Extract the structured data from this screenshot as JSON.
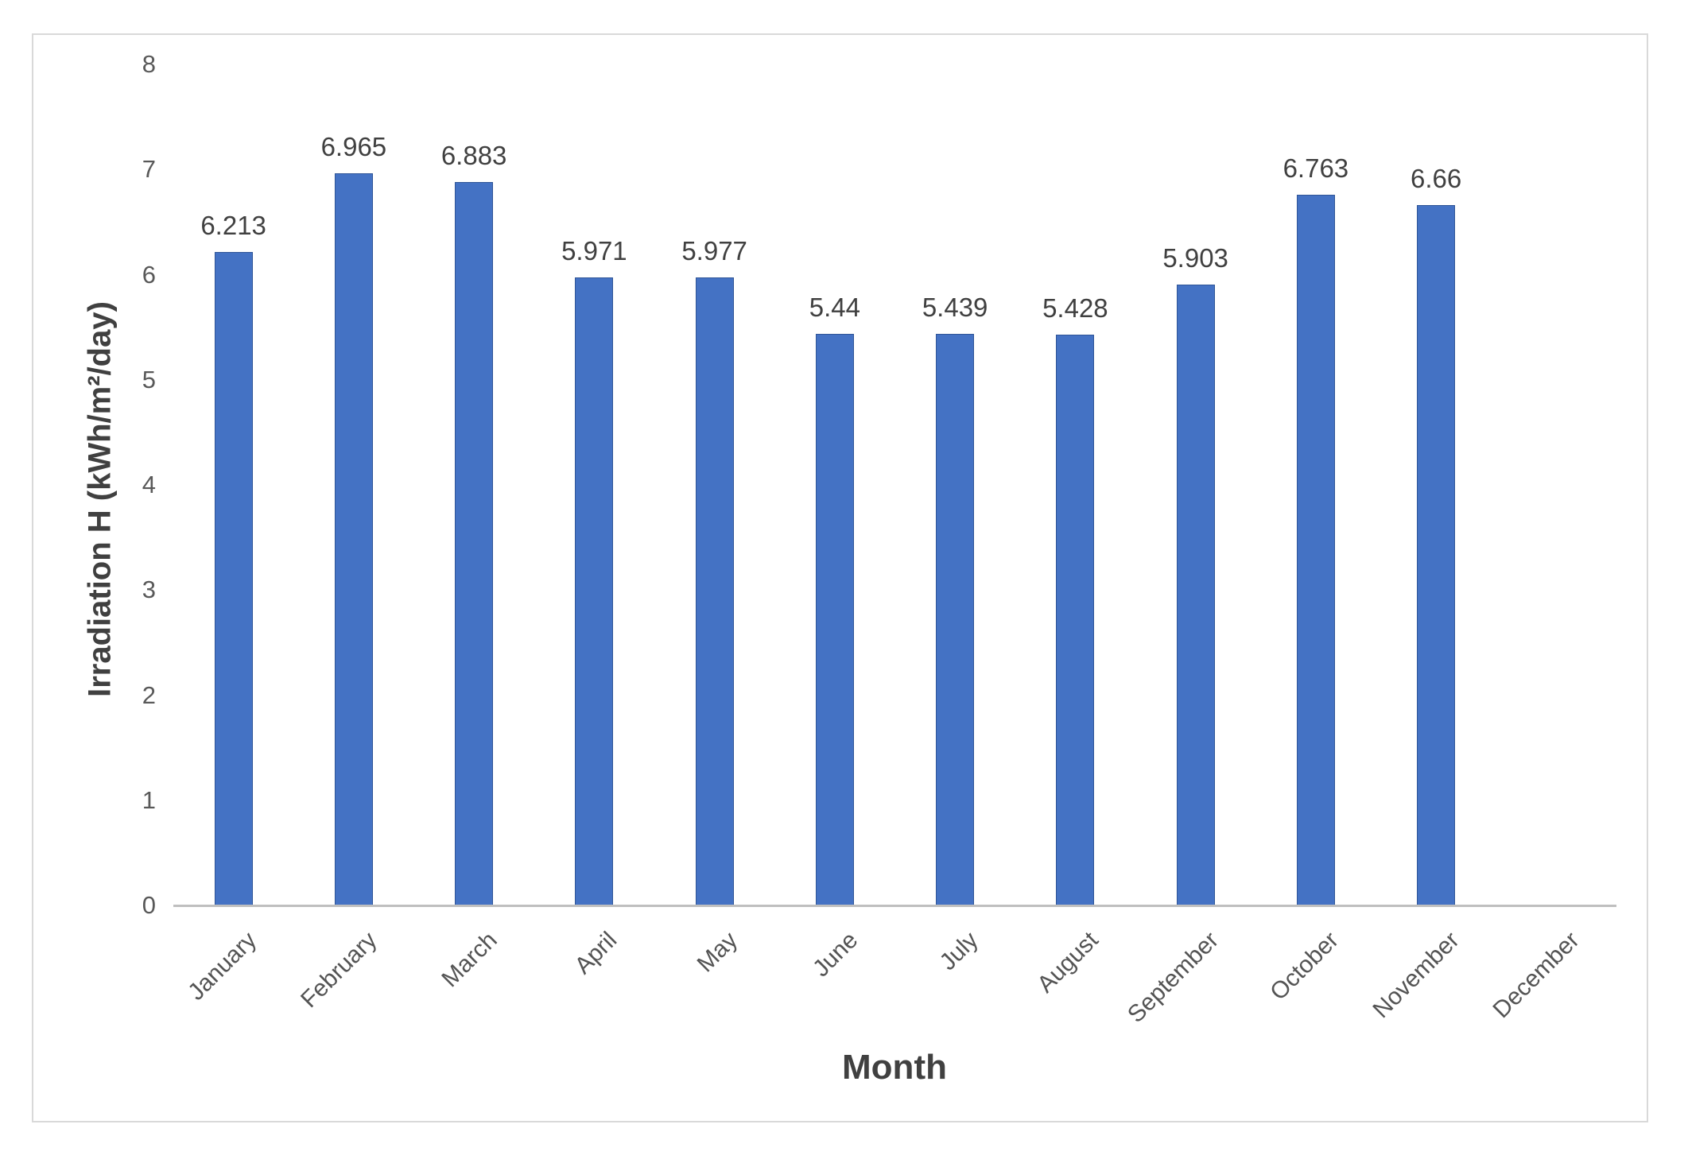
{
  "chart_data": {
    "type": "bar",
    "categories": [
      "January",
      "February",
      "March",
      "April",
      "May",
      "June",
      "July",
      "August",
      "September",
      "October",
      "November",
      "December"
    ],
    "values": [
      6.213,
      6.965,
      6.883,
      5.971,
      5.977,
      5.44,
      5.439,
      5.428,
      5.903,
      6.763,
      6.66,
      0
    ],
    "data_labels": [
      "6.213",
      "6.965",
      "6.883",
      "5.971",
      "5.977",
      "5.44",
      "5.439",
      "5.428",
      "5.903",
      "6.763",
      "6.66",
      ""
    ],
    "title": "",
    "xlabel": "Month",
    "ylabel": "Irradiation H (kWh/m²/day)",
    "ylim": [
      0,
      8
    ],
    "yticks": [
      "0",
      "1",
      "2",
      "3",
      "4",
      "5",
      "6",
      "7",
      "8"
    ],
    "grid": false,
    "legend": false,
    "colors": {
      "bar_fill": "#4472C4",
      "bar_border": "#2F5597",
      "axis_line": "#BFBFBF",
      "tick_label": "#595959",
      "data_label": "#404040",
      "axis_title": "#404040",
      "frame_border": "#D9D9D9",
      "background": "#FFFFFF"
    }
  }
}
